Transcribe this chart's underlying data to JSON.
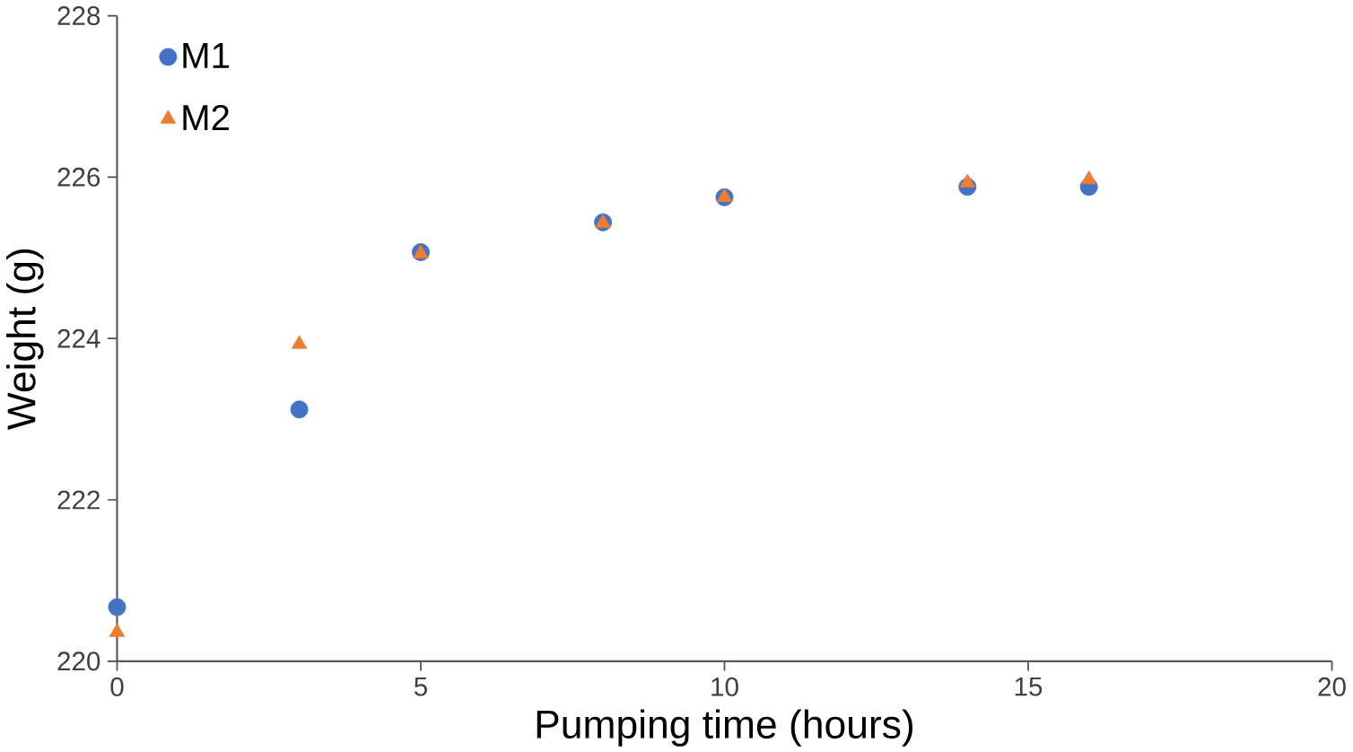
{
  "chart_data": {
    "type": "scatter",
    "xlabel": "Pumping time (hours)",
    "ylabel": "Weight (g)",
    "x": [
      0,
      3,
      5,
      8,
      10,
      14,
      16
    ],
    "series": [
      {
        "name": "M1",
        "color": "#4472c4",
        "marker": "circle",
        "values": [
          220.67,
          223.12,
          225.07,
          225.44,
          225.75,
          225.88,
          225.88
        ]
      },
      {
        "name": "M2",
        "color": "#ed7d31",
        "marker": "triangle",
        "values": [
          220.36,
          223.93,
          225.05,
          225.43,
          225.75,
          225.93,
          225.97
        ]
      }
    ],
    "xlim": [
      0,
      20
    ],
    "xticks": [
      0,
      5,
      10,
      15,
      20
    ],
    "ylim": [
      220,
      228
    ],
    "yticks": [
      220,
      222,
      224,
      226,
      228
    ],
    "grid": false,
    "legend": "top left"
  }
}
